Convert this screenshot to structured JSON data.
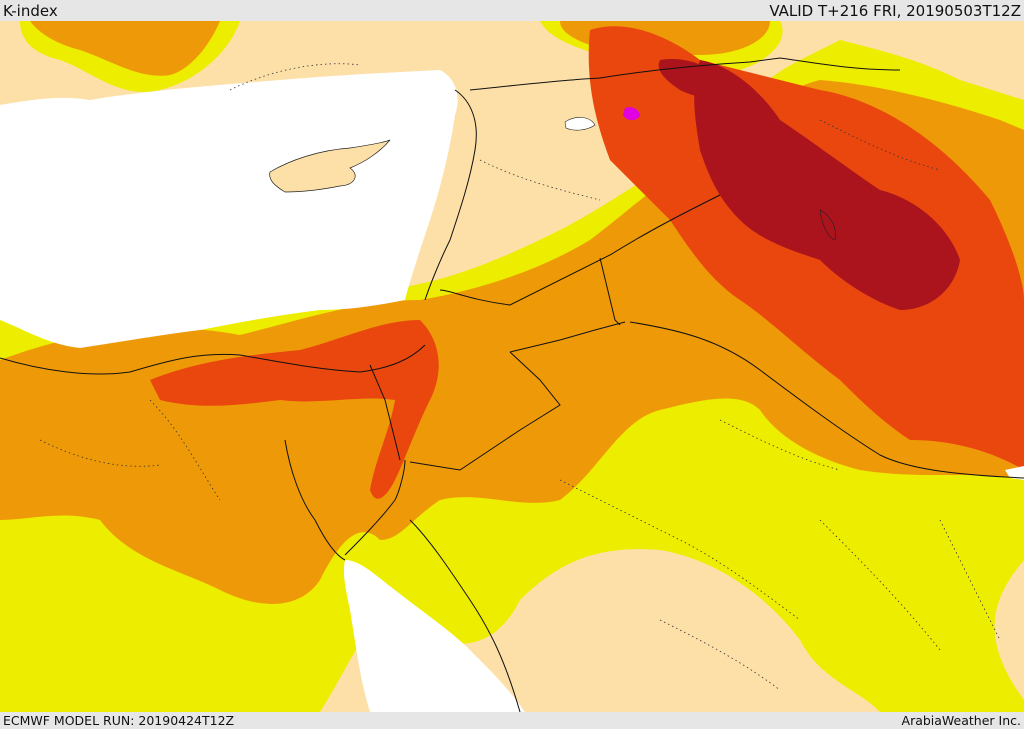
{
  "header": {
    "title": "K-index",
    "valid_time": "VALID T+216 FRI, 20190503T12Z"
  },
  "footer": {
    "model_run": "ECMWF MODEL RUN: 20190424T12Z",
    "credit": "ArabiaWeather Inc."
  },
  "colors": {
    "background_low": "#fde0a8",
    "band_20_25": "#eded00",
    "band_25_30": "#ee9a08",
    "band_30_35": "#e9470e",
    "band_35_40": "#ab131d",
    "band_40_plus": "#e000e0",
    "water": "#ffffff",
    "bar_background": "#e6e6e6"
  }
}
